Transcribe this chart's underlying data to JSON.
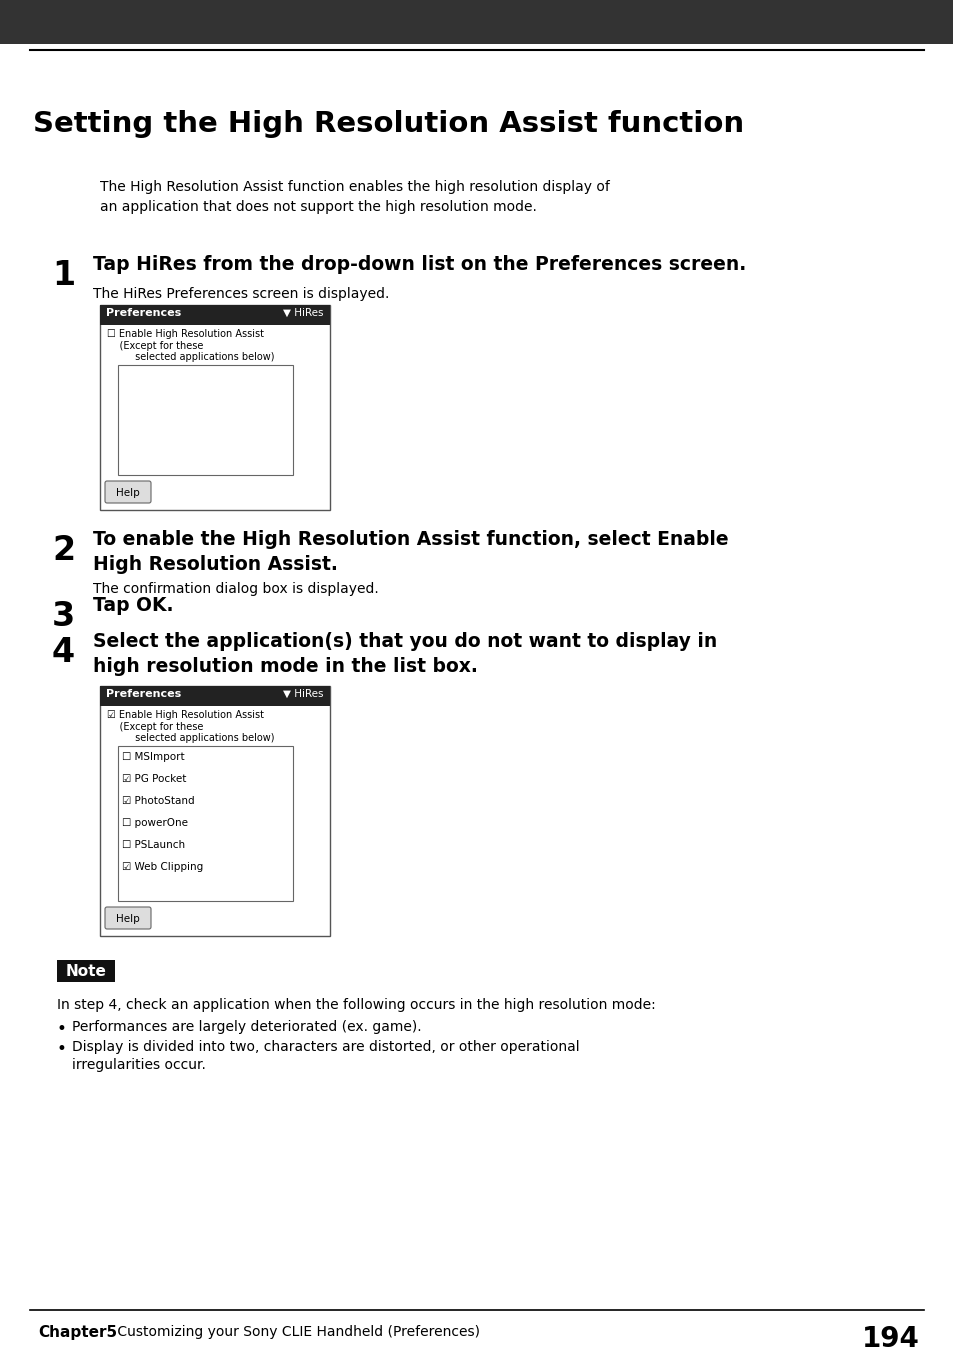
{
  "title": "Setting the High Resolution Assist function",
  "header_bg": "#333333",
  "page_bg": "#ffffff",
  "intro_text": "The High Resolution Assist function enables the high resolution display of\nan application that does not support the high resolution mode.",
  "step1_num": "1",
  "step1_main": "Tap HiRes from the drop-down list on the Preferences screen.",
  "step1_sub": "The HiRes Preferences screen is displayed.",
  "step2_num": "2",
  "step2_main": "To enable the High Resolution Assist function, select Enable\nHigh Resolution Assist.",
  "step2_sub": "The confirmation dialog box is displayed.",
  "step3_num": "3",
  "step3_main": "Tap OK.",
  "step4_num": "4",
  "step4_main": "Select the application(s) that you do not want to display in\nhigh resolution mode in the list box.",
  "note_label": "Note",
  "note_text": "In step 4, check an application when the following occurs in the high resolution mode:",
  "bullet1": "Performances are largely deteriorated (ex. game).",
  "bullet2": "Display is divided into two, characters are distorted, or other operational\n    irregularities occur.",
  "footer_chapter": "Chapter5",
  "footer_text": " Customizing your Sony CLIE Handheld (Preferences)",
  "footer_page": "194",
  "screen1_title": "Preferences",
  "screen1_dropdown": "▼ HiRes",
  "screen1_check": "☐ Enable High Resolution Assist",
  "screen1_line2": "    (Except for these",
  "screen1_line3": "         selected applications below)",
  "screen1_help": "Help",
  "screen2_title": "Preferences",
  "screen2_dropdown": "▼ HiRes",
  "screen2_check": "☑ Enable High Resolution Assist",
  "screen2_line2": "    (Except for these",
  "screen2_line3": "         selected applications below)",
  "screen2_items": [
    "☐ MSImport",
    "☑ PG Pocket",
    "☑ PhotoStand",
    "☐ powerOne",
    "☐ PSLaunch",
    "☑ Web Clipping"
  ],
  "screen2_help": "Help"
}
